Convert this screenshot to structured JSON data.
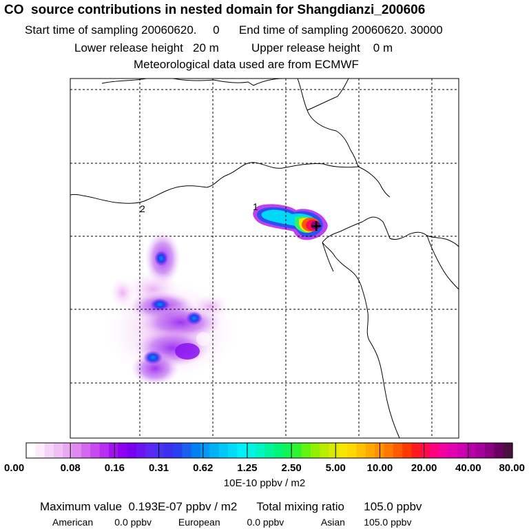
{
  "header": {
    "title": "CO  source contributions in nested domain for Shangdianzi_200606",
    "start_label": "Start time of sampling",
    "start_value": "20060620.     0",
    "end_label": "End time of sampling",
    "end_value": "20060620. 30000",
    "lower_label": "Lower release height",
    "lower_value": "20 m",
    "upper_label": "Upper release height",
    "upper_value": "0 m",
    "met_line": "Meteorological data used are from ECMWF"
  },
  "map": {
    "contour_labels": [
      "1",
      "2"
    ]
  },
  "chart_data": {
    "type": "heatmap",
    "title": "CO  source contributions in nested domain for Shangdianzi_200606",
    "colorbar": {
      "tick_labels": [
        "0.00",
        "0.08",
        "0.16",
        "0.31",
        "0.62",
        "1.25",
        "2.50",
        "5.00",
        "10.00",
        "20.00",
        "40.00",
        "80.00"
      ],
      "unit": "10E-10 ppbv / m2",
      "colors": [
        "#ffffff",
        "#fbebfb",
        "#f5d5f7",
        "#f0c0f5",
        "#e8a8f2",
        "#df88ef",
        "#d468ee",
        "#c84aee",
        "#b92ff0",
        "#a313f0",
        "#8d00f0",
        "#7800f0",
        "#6a14f0",
        "#5a28f0",
        "#4a30f0",
        "#3a30f0",
        "#2a40f0",
        "#1a60f0",
        "#0080f0",
        "#0098f2",
        "#00b0f4",
        "#00c8f6",
        "#00dcf8",
        "#00f0fa",
        "#00f4e4",
        "#00f4c0",
        "#00f49c",
        "#00f478",
        "#10f454",
        "#30f430",
        "#60f410",
        "#90f000",
        "#b8ec00",
        "#d8ea00",
        "#f4e800",
        "#ffd800",
        "#ffc000",
        "#ffa800",
        "#ff9000",
        "#ff7800",
        "#ff5a00",
        "#ff3a00",
        "#ff1a20",
        "#ff0a50",
        "#ff0080",
        "#f000a0",
        "#e000b0",
        "#cc00b0",
        "#b800a8",
        "#a20098",
        "#8a0080",
        "#6a0060",
        "#4a1040"
      ]
    },
    "receptor_marker": "+",
    "summary": {
      "maximum_label": "Maximum value",
      "maximum_value": "0.193E-07 ppbv / m2",
      "total_label": "Total mixing ratio",
      "total_value": "105.0 ppbv"
    },
    "regions": [
      {
        "name": "American",
        "value": "0.0 ppbv"
      },
      {
        "name": "European",
        "value": "0.0 ppbv"
      },
      {
        "name": "Asian",
        "value": "105.0 ppbv"
      }
    ]
  }
}
